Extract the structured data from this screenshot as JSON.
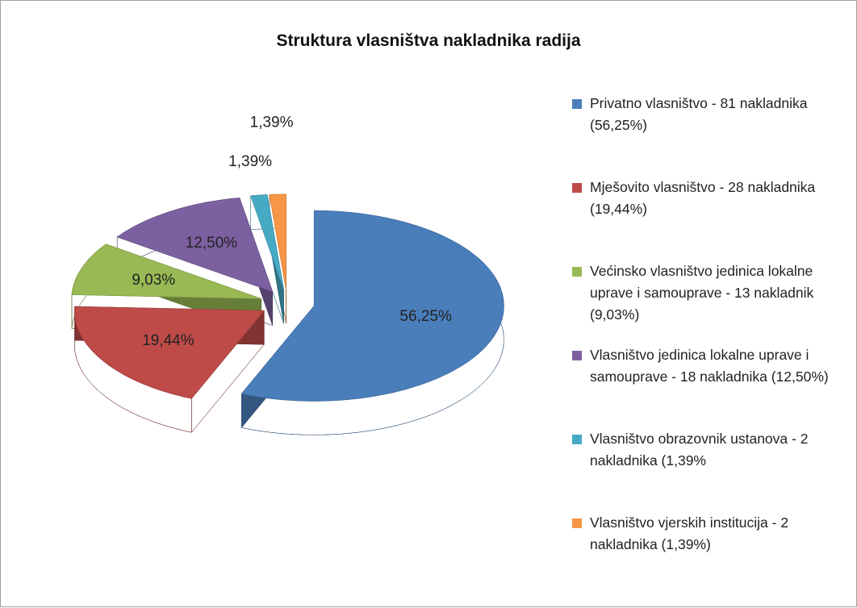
{
  "chart_data": {
    "type": "pie3d",
    "title": "Struktura vlasništva nakladnika radija",
    "categories": [
      "Privatno vlasništvo - 81 nakladnika (56,25%)",
      "Mješovito vlasništvo - 28 nakladnika (19,44%)",
      "Većinsko vlasništvo jedinica lokalne uprave i samouprave - 13 nakladnik (9,03%)",
      "Vlasništvo jedinica lokalne uprave i samouprave - 18 nakladnika (12,50%)",
      "Vlasništvo obrazovnik ustanova - 2 nakladnika (1,39%",
      "Vlasništvo vjerskih institucija - 2 nakladnika (1,39%)"
    ],
    "values": [
      56.25,
      19.44,
      9.03,
      12.5,
      1.39,
      1.39
    ],
    "value_labels": [
      "56,25%",
      "19,44%",
      "9,03%",
      "12,50%",
      "1,39%",
      "1,39%"
    ],
    "colors": [
      "#4a7ebb",
      "#be4b48",
      "#98b954",
      "#7d60a0",
      "#46aac5",
      "#f79646"
    ],
    "legend": "right"
  }
}
